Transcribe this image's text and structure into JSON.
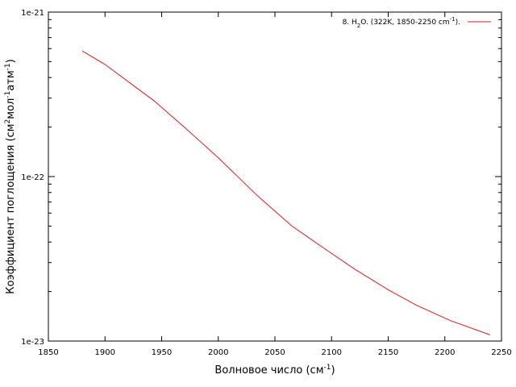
{
  "chart_data": {
    "type": "line",
    "title": "",
    "xlabel": {
      "text": "Волновое число (см",
      "sup": "-1",
      "suffix": ")"
    },
    "ylabel": {
      "text_1": "Коэффициент поглощения (см",
      "sup_1": "2",
      "text_2": "мол",
      "sup_2": "-1",
      "text_3": "атм",
      "sup_3": "-1",
      "suffix": ")"
    },
    "x_axis": {
      "min": 1850,
      "max": 2250,
      "ticks": [
        1850,
        1900,
        1950,
        2000,
        2050,
        2100,
        2150,
        2200,
        2250
      ],
      "tick_labels": [
        "1850",
        "1900",
        "1950",
        "2000",
        "2050",
        "2100",
        "2150",
        "2200",
        "2250"
      ]
    },
    "y_axis": {
      "scale": "log",
      "min": 1e-23,
      "max": 1e-21,
      "major_ticks": [
        1e-23,
        1e-22,
        1e-21
      ],
      "tick_labels": [
        "1e-23",
        "1e-22",
        "1e-21"
      ]
    },
    "legend": {
      "position": "top-right",
      "entry_prefix": "8. H",
      "entry_sub": "2",
      "entry_mid": "O. (322K, 1850-2250 cm",
      "entry_sup": "-1",
      "entry_suffix": ")."
    },
    "series": [
      {
        "color": "#e41a1c",
        "x": [
          1880,
          1900,
          1920,
          1943,
          1970,
          2000,
          2035,
          2065,
          2095,
          2120,
          2150,
          2175,
          2205,
          2240
        ],
        "y": [
          5.8e-22,
          4.8e-22,
          3.8e-22,
          2.9e-22,
          2e-22,
          1.3e-22,
          7.6e-23,
          5e-23,
          3.6e-23,
          2.75e-23,
          2.05e-23,
          1.65e-23,
          1.33e-23,
          1.09e-23
        ]
      }
    ]
  }
}
